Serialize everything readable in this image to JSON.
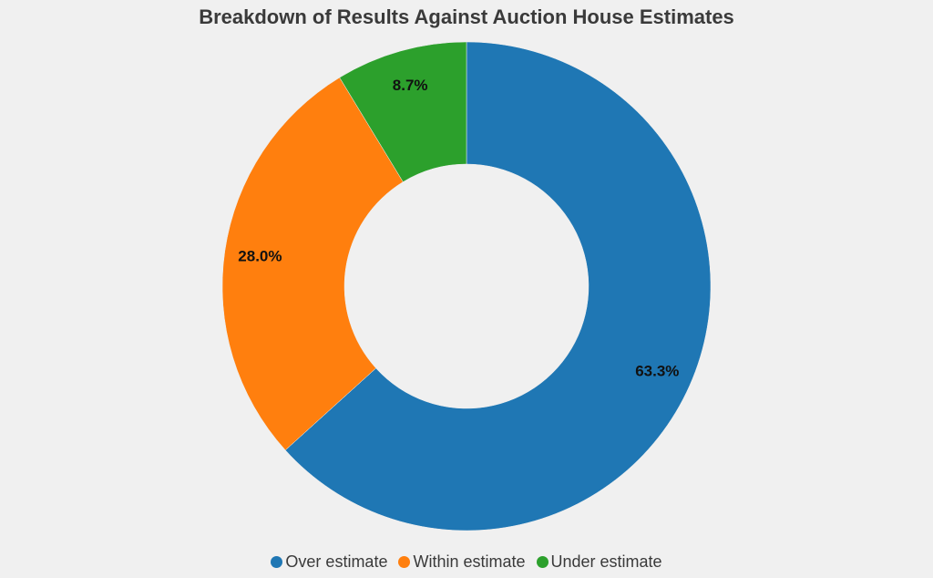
{
  "chart_data": {
    "type": "pie",
    "title": "Breakdown of Results Against Auction House Estimates",
    "donut": true,
    "categories": [
      "Over estimate",
      "Within estimate",
      "Under estimate"
    ],
    "values": [
      63.3,
      28.0,
      8.7
    ],
    "labels": [
      "63.3%",
      "28.0%",
      "8.7%"
    ],
    "colors": [
      "#1f77b4",
      "#ff7f0e",
      "#2ca02c"
    ],
    "start": "top",
    "direction": "clockwise",
    "legend": "bottom-center"
  }
}
